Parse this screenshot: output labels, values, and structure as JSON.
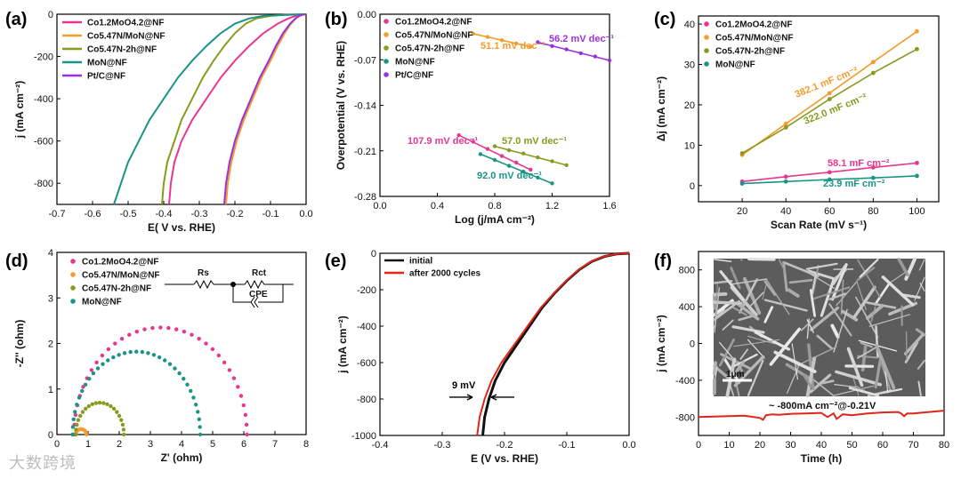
{
  "watermark": "大数跨境",
  "panels": [
    {
      "label": "(a)",
      "xlabel": "E( V vs. RHE)",
      "ylabel": "j (mA cm⁻²)",
      "legend": [
        "Co1.2MoO4.2@NF",
        "Co5.47N/MoN@NF",
        "Co5.47N-2h@NF",
        "MoN@NF",
        "Pt/C@NF"
      ]
    },
    {
      "label": "(b)",
      "xlabel": "Log (j/mA cm⁻²)",
      "ylabel": "Overpotential (V vs. RHE)",
      "legend": [
        "Co1.2MoO4.2@NF",
        "Co5.47N/MoN@NF",
        "Co5.47N-2h@NF",
        "MoN@NF",
        "Pt/C@NF"
      ],
      "annotations": [
        "51.1 mV dec⁻¹",
        "56.2 mV dec⁻¹",
        "107.9 mV dec⁻¹",
        "57.0 mV dec⁻¹",
        "92.0 mV dec⁻¹"
      ]
    },
    {
      "label": "(c)",
      "xlabel": "Scan Rate (mV s⁻¹)",
      "ylabel": "Δj (mA cm⁻²)",
      "legend": [
        "Co1.2MoO4.2@NF",
        "Co5.47N/MoN@NF",
        "Co5.47N-2h@NF",
        "MoN@NF"
      ],
      "annotations": [
        "382.1 mF cm⁻²",
        "322.0 mF cm⁻²",
        "58.1 mF cm⁻²",
        "23.9 mF cm⁻²"
      ]
    },
    {
      "label": "(d)",
      "xlabel": "Z' (ohm)",
      "ylabel": "-Z'' (ohm)",
      "legend": [
        "Co1.2MoO4.2@NF",
        "Co5.47N/MoN@NF",
        "Co5.47N-2h@NF",
        "MoN@NF"
      ],
      "circuit": [
        "Rs",
        "Rct",
        "CPE"
      ]
    },
    {
      "label": "(e)",
      "xlabel": "E (V vs. RHE)",
      "ylabel": "j (mA cm⁻²)",
      "legend": [
        "initial",
        "after 2000 cycles"
      ],
      "annotations": [
        "9 mV"
      ]
    },
    {
      "label": "(f)",
      "xlabel": "Time (h)",
      "ylabel": "j (mA cm⁻²)",
      "annotations": [
        "~ -800mA cm⁻²@-0.21V",
        "1μm"
      ]
    }
  ],
  "chart_data": [
    {
      "type": "line",
      "xlim": [
        -0.7,
        0.0
      ],
      "ylim": [
        -900,
        0
      ],
      "xticks": [
        "-0.7",
        "-0.6",
        "-0.5",
        "-0.4",
        "-0.3",
        "-0.2",
        "-0.1",
        "0.0"
      ],
      "yticks": [
        "0",
        "-200",
        "-400",
        "-600",
        "-800"
      ],
      "colors": [
        "#e8368f",
        "#f39c2b",
        "#8a9a1e",
        "#1a9486",
        "#9b30e0"
      ],
      "series": [
        {
          "name": "Co1.2MoO4.2@NF",
          "x": [
            -0.385,
            -0.38,
            -0.37,
            -0.35,
            -0.32,
            -0.28,
            -0.24,
            -0.2,
            -0.16,
            -0.12,
            -0.08,
            -0.05,
            -0.03,
            -0.02,
            0.0
          ],
          "y": [
            -900,
            -800,
            -700,
            -600,
            -500,
            -400,
            -300,
            -220,
            -150,
            -90,
            -45,
            -20,
            -8,
            -3,
            0
          ]
        },
        {
          "name": "Co5.47N/MoN@NF",
          "x": [
            -0.225,
            -0.22,
            -0.21,
            -0.195,
            -0.175,
            -0.15,
            -0.125,
            -0.1,
            -0.08,
            -0.06,
            -0.045,
            -0.03,
            -0.02,
            -0.01,
            0.0
          ],
          "y": [
            -900,
            -800,
            -700,
            -600,
            -500,
            -400,
            -300,
            -220,
            -150,
            -90,
            -50,
            -22,
            -10,
            -3,
            0
          ]
        },
        {
          "name": "Co5.47N-2h@NF",
          "x": [
            -0.405,
            -0.4,
            -0.39,
            -0.37,
            -0.35,
            -0.32,
            -0.29,
            -0.26,
            -0.23,
            -0.2,
            -0.17,
            -0.14,
            -0.1,
            -0.06,
            0.0
          ],
          "y": [
            -900,
            -800,
            -700,
            -600,
            -500,
            -400,
            -300,
            -220,
            -150,
            -90,
            -45,
            -20,
            -8,
            -3,
            0
          ]
        },
        {
          "name": "MoN@NF",
          "x": [
            -0.54,
            -0.52,
            -0.5,
            -0.47,
            -0.44,
            -0.4,
            -0.36,
            -0.32,
            -0.28,
            -0.24,
            -0.2,
            -0.16,
            -0.12,
            -0.06,
            0.0
          ],
          "y": [
            -900,
            -800,
            -700,
            -600,
            -500,
            -400,
            -300,
            -220,
            -150,
            -90,
            -45,
            -20,
            -8,
            -3,
            0
          ]
        },
        {
          "name": "Pt/C@NF",
          "x": [
            -0.23,
            -0.225,
            -0.215,
            -0.2,
            -0.18,
            -0.155,
            -0.13,
            -0.105,
            -0.085,
            -0.065,
            -0.045,
            -0.03,
            -0.02,
            -0.01,
            0.0
          ],
          "y": [
            -900,
            -800,
            -700,
            -600,
            -500,
            -400,
            -300,
            -220,
            -150,
            -90,
            -45,
            -20,
            -8,
            -3,
            0
          ]
        }
      ]
    },
    {
      "type": "scatter",
      "xlim": [
        0.0,
        1.6
      ],
      "ylim": [
        -0.28,
        0.0
      ],
      "xticks": [
        "0.0",
        "0.4",
        "0.8",
        "1.2",
        "1.6"
      ],
      "yticks": [
        "0.00",
        "-0.07",
        "-0.14",
        "-0.21",
        "-0.28"
      ],
      "colors": [
        "#e8368f",
        "#f39c2b",
        "#8a9a1e",
        "#1a9486",
        "#9b30e0"
      ],
      "series": [
        {
          "name": "Co1.2MoO4.2@NF",
          "x": [
            0.55,
            0.65,
            0.75,
            0.85,
            0.95,
            1.05
          ],
          "y": [
            -0.186,
            -0.196,
            -0.207,
            -0.218,
            -0.228,
            -0.239
          ]
        },
        {
          "name": "Co5.47N/MoN@NF",
          "x": [
            0.65,
            0.75,
            0.85,
            0.95,
            1.05
          ],
          "y": [
            -0.03,
            -0.035,
            -0.04,
            -0.045,
            -0.05
          ]
        },
        {
          "name": "Co5.47N-2h@NF",
          "x": [
            0.8,
            0.9,
            1.0,
            1.1,
            1.2,
            1.3
          ],
          "y": [
            -0.203,
            -0.209,
            -0.214,
            -0.22,
            -0.226,
            -0.232
          ]
        },
        {
          "name": "MoN@NF",
          "x": [
            0.7,
            0.8,
            0.9,
            1.0,
            1.1,
            1.2
          ],
          "y": [
            -0.215,
            -0.224,
            -0.233,
            -0.242,
            -0.251,
            -0.26
          ]
        },
        {
          "name": "Pt/C@NF",
          "x": [
            1.1,
            1.2,
            1.3,
            1.4,
            1.5,
            1.6
          ],
          "y": [
            -0.043,
            -0.049,
            -0.054,
            -0.06,
            -0.065,
            -0.071
          ]
        }
      ]
    },
    {
      "type": "line",
      "xlim": [
        0,
        110
      ],
      "ylim": [
        -4,
        42
      ],
      "xticks": [
        "20",
        "40",
        "60",
        "80",
        "100"
      ],
      "yticks": [
        "0",
        "10",
        "20",
        "30",
        "40"
      ],
      "colors": [
        "#e8368f",
        "#f39c2b",
        "#8a9a1e",
        "#1a9486"
      ],
      "series": [
        {
          "name": "Co1.2MoO4.2@NF",
          "x": [
            20,
            40,
            60,
            80,
            100
          ],
          "y": [
            1.0,
            2.2,
            3.3,
            4.5,
            5.6
          ]
        },
        {
          "name": "Co5.47N/MoN@NF",
          "x": [
            20,
            40,
            60,
            80,
            100
          ],
          "y": [
            7.6,
            15.3,
            22.9,
            30.6,
            38.2
          ]
        },
        {
          "name": "Co5.47N-2h@NF",
          "x": [
            20,
            40,
            60,
            80,
            100
          ],
          "y": [
            8.0,
            14.4,
            21.4,
            27.9,
            33.8
          ]
        },
        {
          "name": "MoN@NF",
          "x": [
            20,
            40,
            60,
            80,
            100
          ],
          "y": [
            0.5,
            1.0,
            1.5,
            1.9,
            2.4
          ]
        }
      ]
    },
    {
      "type": "scatter",
      "xlim": [
        0,
        8
      ],
      "ylim": [
        0,
        4
      ],
      "xticks": [
        "0",
        "1",
        "2",
        "3",
        "4",
        "5",
        "6",
        "7",
        "8"
      ],
      "yticks": [
        "0",
        "1",
        "2",
        "3",
        "4"
      ],
      "colors": [
        "#e8368f",
        "#f39c2b",
        "#8a9a1e",
        "#1a9486"
      ],
      "arcs": [
        {
          "name": "Co1.2MoO4.2@NF",
          "start": 0.55,
          "end": 6.1,
          "height": 2.35
        },
        {
          "name": "Co5.47N/MoN@NF",
          "start": 0.6,
          "end": 0.95,
          "height": 0.12
        },
        {
          "name": "Co5.47N-2h@NF",
          "start": 0.6,
          "end": 2.15,
          "height": 0.7
        },
        {
          "name": "MoN@NF",
          "start": 0.5,
          "end": 4.6,
          "height": 1.82
        }
      ]
    },
    {
      "type": "line",
      "xlim": [
        -0.4,
        0.0
      ],
      "ylim": [
        -1000,
        0
      ],
      "xticks": [
        "-0.4",
        "-0.3",
        "-0.2",
        "-0.1",
        "0.0"
      ],
      "yticks": [
        "0",
        "-200",
        "-400",
        "-600",
        "-800",
        "-1000"
      ],
      "colors": [
        "#111111",
        "#e0261b"
      ],
      "series": [
        {
          "name": "initial",
          "x": [
            -0.235,
            -0.232,
            -0.225,
            -0.215,
            -0.2,
            -0.18,
            -0.16,
            -0.14,
            -0.12,
            -0.1,
            -0.08,
            -0.06,
            -0.04,
            -0.02,
            0.0
          ],
          "y": [
            -1000,
            -900,
            -800,
            -700,
            -600,
            -500,
            -400,
            -300,
            -220,
            -150,
            -90,
            -45,
            -18,
            -4,
            0
          ]
        },
        {
          "name": "after 2000 cycles",
          "x": [
            -0.244,
            -0.24,
            -0.232,
            -0.221,
            -0.205,
            -0.184,
            -0.163,
            -0.142,
            -0.121,
            -0.101,
            -0.081,
            -0.061,
            -0.041,
            -0.02,
            0.0
          ],
          "y": [
            -1000,
            -900,
            -800,
            -700,
            -600,
            -500,
            -400,
            -300,
            -220,
            -150,
            -90,
            -45,
            -18,
            -4,
            0
          ]
        }
      ]
    },
    {
      "type": "line",
      "xlim": [
        0,
        80
      ],
      "ylim": [
        -1000,
        1000
      ],
      "xticks": [
        "0",
        "10",
        "20",
        "30",
        "40",
        "50",
        "60",
        "70",
        "80"
      ],
      "yticks": [
        "800",
        "400",
        "0",
        "-400",
        "-800"
      ],
      "colors": [
        "#e0261b"
      ],
      "series": [
        {
          "name": "",
          "x": [
            0,
            5,
            10,
            15,
            20,
            21,
            22,
            24,
            26,
            30,
            35,
            40,
            42,
            44,
            45,
            47,
            50,
            55,
            60,
            65,
            66,
            67,
            68,
            70,
            75,
            80
          ],
          "y": [
            -800,
            -795,
            -790,
            -785,
            -810,
            -830,
            -780,
            -770,
            -775,
            -765,
            -760,
            -755,
            -800,
            -760,
            -820,
            -770,
            -780,
            -760,
            -750,
            -745,
            -760,
            -790,
            -760,
            -760,
            -745,
            -730
          ]
        }
      ]
    }
  ]
}
